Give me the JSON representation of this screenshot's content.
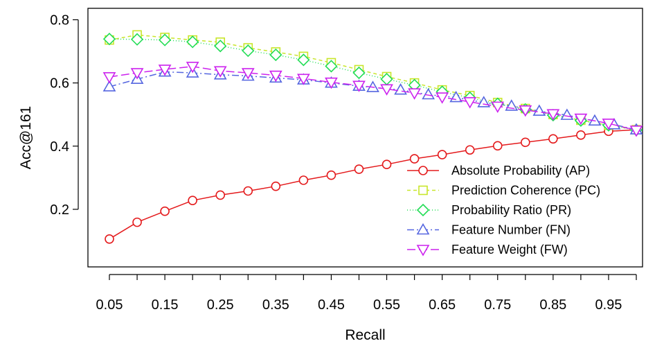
{
  "chart_data": {
    "type": "line",
    "title": "",
    "xlabel": "Recall",
    "ylabel": "Acc@161",
    "xlim": [
      0.05,
      1.0
    ],
    "ylim": [
      0.06,
      0.84
    ],
    "x_ticks": [
      "0.05",
      "0.15",
      "0.25",
      "0.35",
      "0.45",
      "0.55",
      "0.65",
      "0.75",
      "0.85",
      "0.95"
    ],
    "x_tick_values": [
      0.05,
      0.15,
      0.25,
      0.35,
      0.45,
      0.55,
      0.65,
      0.75,
      0.85,
      0.95
    ],
    "y_ticks": [
      "0.2",
      "0.4",
      "0.6",
      "0.8"
    ],
    "y_tick_values": [
      0.2,
      0.4,
      0.6,
      0.8
    ],
    "grid": false,
    "legend_position": "bottom-right",
    "series": [
      {
        "name": "Absolute Probability (AP)",
        "color": "#e41a1c",
        "marker": "circle",
        "dash": "solid",
        "x": [
          0.05,
          0.1,
          0.15,
          0.2,
          0.25,
          0.3,
          0.35,
          0.4,
          0.45,
          0.5,
          0.55,
          0.6,
          0.65,
          0.7,
          0.75,
          0.8,
          0.85,
          0.9,
          0.95,
          1.0
        ],
        "y": [
          0.106,
          0.159,
          0.194,
          0.228,
          0.245,
          0.258,
          0.273,
          0.292,
          0.308,
          0.327,
          0.342,
          0.36,
          0.373,
          0.388,
          0.401,
          0.412,
          0.423,
          0.435,
          0.447,
          0.452
        ]
      },
      {
        "name": "Prediction Coherence (PC)",
        "color": "#c8e62a",
        "marker": "square",
        "dash": "5,4",
        "x": [
          0.05,
          0.1,
          0.15,
          0.2,
          0.25,
          0.3,
          0.35,
          0.4,
          0.45,
          0.5,
          0.55,
          0.6,
          0.65,
          0.7,
          0.75,
          0.8,
          0.85,
          0.9,
          0.95,
          1.0
        ],
        "y": [
          0.736,
          0.752,
          0.744,
          0.736,
          0.729,
          0.711,
          0.698,
          0.684,
          0.664,
          0.642,
          0.62,
          0.6,
          0.578,
          0.56,
          0.538,
          0.519,
          0.5,
          0.482,
          0.466,
          0.452
        ]
      },
      {
        "name": "Probability Ratio (PR)",
        "color": "#22dd55",
        "marker": "diamond",
        "dash": "1,3",
        "x": [
          0.05,
          0.1,
          0.15,
          0.2,
          0.25,
          0.3,
          0.35,
          0.4,
          0.45,
          0.5,
          0.55,
          0.6,
          0.65,
          0.7,
          0.75,
          0.8,
          0.85,
          0.9,
          0.95,
          1.0
        ],
        "y": [
          0.739,
          0.738,
          0.736,
          0.73,
          0.717,
          0.702,
          0.689,
          0.673,
          0.653,
          0.632,
          0.612,
          0.593,
          0.572,
          0.553,
          0.534,
          0.516,
          0.498,
          0.481,
          0.466,
          0.451
        ]
      },
      {
        "name": "Feature Number (FN)",
        "color": "#5566e0",
        "marker": "triangle-up",
        "dash": "10,4,2,4",
        "x": [
          0.05,
          0.1,
          0.15,
          0.2,
          0.25,
          0.3,
          0.35,
          0.4,
          0.45,
          0.5,
          0.525,
          0.575,
          0.625,
          0.675,
          0.725,
          0.775,
          0.825,
          0.875,
          0.925,
          0.96,
          1.0
        ],
        "y": [
          0.588,
          0.612,
          0.635,
          0.632,
          0.626,
          0.622,
          0.616,
          0.61,
          0.6,
          0.59,
          0.586,
          0.578,
          0.563,
          0.554,
          0.538,
          0.527,
          0.511,
          0.498,
          0.48,
          0.468,
          0.452
        ]
      },
      {
        "name": "Feature Weight (FW)",
        "color": "#cc22ee",
        "marker": "triangle-down",
        "dash": "12,5",
        "x": [
          0.05,
          0.1,
          0.15,
          0.2,
          0.25,
          0.3,
          0.35,
          0.4,
          0.45,
          0.5,
          0.55,
          0.6,
          0.65,
          0.7,
          0.75,
          0.8,
          0.85,
          0.9,
          0.95,
          1.0
        ],
        "y": [
          0.619,
          0.632,
          0.643,
          0.652,
          0.638,
          0.632,
          0.624,
          0.614,
          0.602,
          0.592,
          0.581,
          0.568,
          0.555,
          0.54,
          0.526,
          0.514,
          0.502,
          0.488,
          0.472,
          0.45
        ]
      }
    ]
  }
}
